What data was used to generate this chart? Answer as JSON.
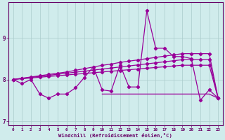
{
  "x": [
    0,
    1,
    2,
    3,
    4,
    5,
    6,
    7,
    8,
    9,
    10,
    11,
    12,
    13,
    14,
    15,
    16,
    17,
    18,
    19,
    20,
    21,
    22,
    23
  ],
  "line_jagged": [
    8.0,
    7.9,
    8.0,
    7.65,
    7.55,
    7.65,
    7.65,
    7.8,
    8.05,
    8.3,
    7.75,
    7.72,
    8.35,
    7.82,
    7.82,
    9.65,
    8.75,
    8.75,
    8.55,
    8.55,
    8.5,
    7.5,
    7.75,
    7.55
  ],
  "trend1": [
    8.0,
    8.03,
    8.06,
    8.09,
    8.12,
    8.15,
    8.18,
    8.22,
    8.26,
    8.3,
    8.34,
    8.37,
    8.41,
    8.44,
    8.47,
    8.5,
    8.53,
    8.56,
    8.59,
    8.62,
    8.62,
    8.62,
    8.62,
    7.55
  ],
  "trend2": [
    8.0,
    8.025,
    8.05,
    8.075,
    8.1,
    8.125,
    8.15,
    8.175,
    8.2,
    8.225,
    8.25,
    8.275,
    8.3,
    8.325,
    8.35,
    8.375,
    8.4,
    8.425,
    8.45,
    8.475,
    8.475,
    8.475,
    8.475,
    7.55
  ],
  "trend3": [
    8.0,
    8.018,
    8.036,
    8.054,
    8.072,
    8.09,
    8.108,
    8.126,
    8.144,
    8.162,
    8.18,
    8.198,
    8.216,
    8.234,
    8.252,
    8.27,
    8.288,
    8.306,
    8.324,
    8.342,
    8.342,
    8.342,
    8.342,
    7.55
  ],
  "flat_x": [
    10,
    11,
    12,
    13,
    14,
    15,
    16,
    17,
    18,
    19,
    20,
    21,
    22,
    23
  ],
  "flat_y": [
    7.65,
    7.65,
    7.65,
    7.65,
    7.65,
    7.65,
    7.65,
    7.65,
    7.65,
    7.65,
    7.65,
    7.65,
    7.65,
    7.55
  ],
  "ylim": [
    6.9,
    9.85
  ],
  "yticks": [
    7,
    8,
    9
  ],
  "xticks": [
    0,
    1,
    2,
    3,
    4,
    5,
    6,
    7,
    8,
    9,
    10,
    11,
    12,
    13,
    14,
    15,
    16,
    17,
    18,
    19,
    20,
    21,
    22,
    23
  ],
  "xlabel": "Windchill (Refroidissement éolien,°C)",
  "line_color": "#990099",
  "bg_color": "#d0ecec",
  "grid_color": "#aacccc",
  "axis_color": "#660066",
  "tick_color": "#660066"
}
